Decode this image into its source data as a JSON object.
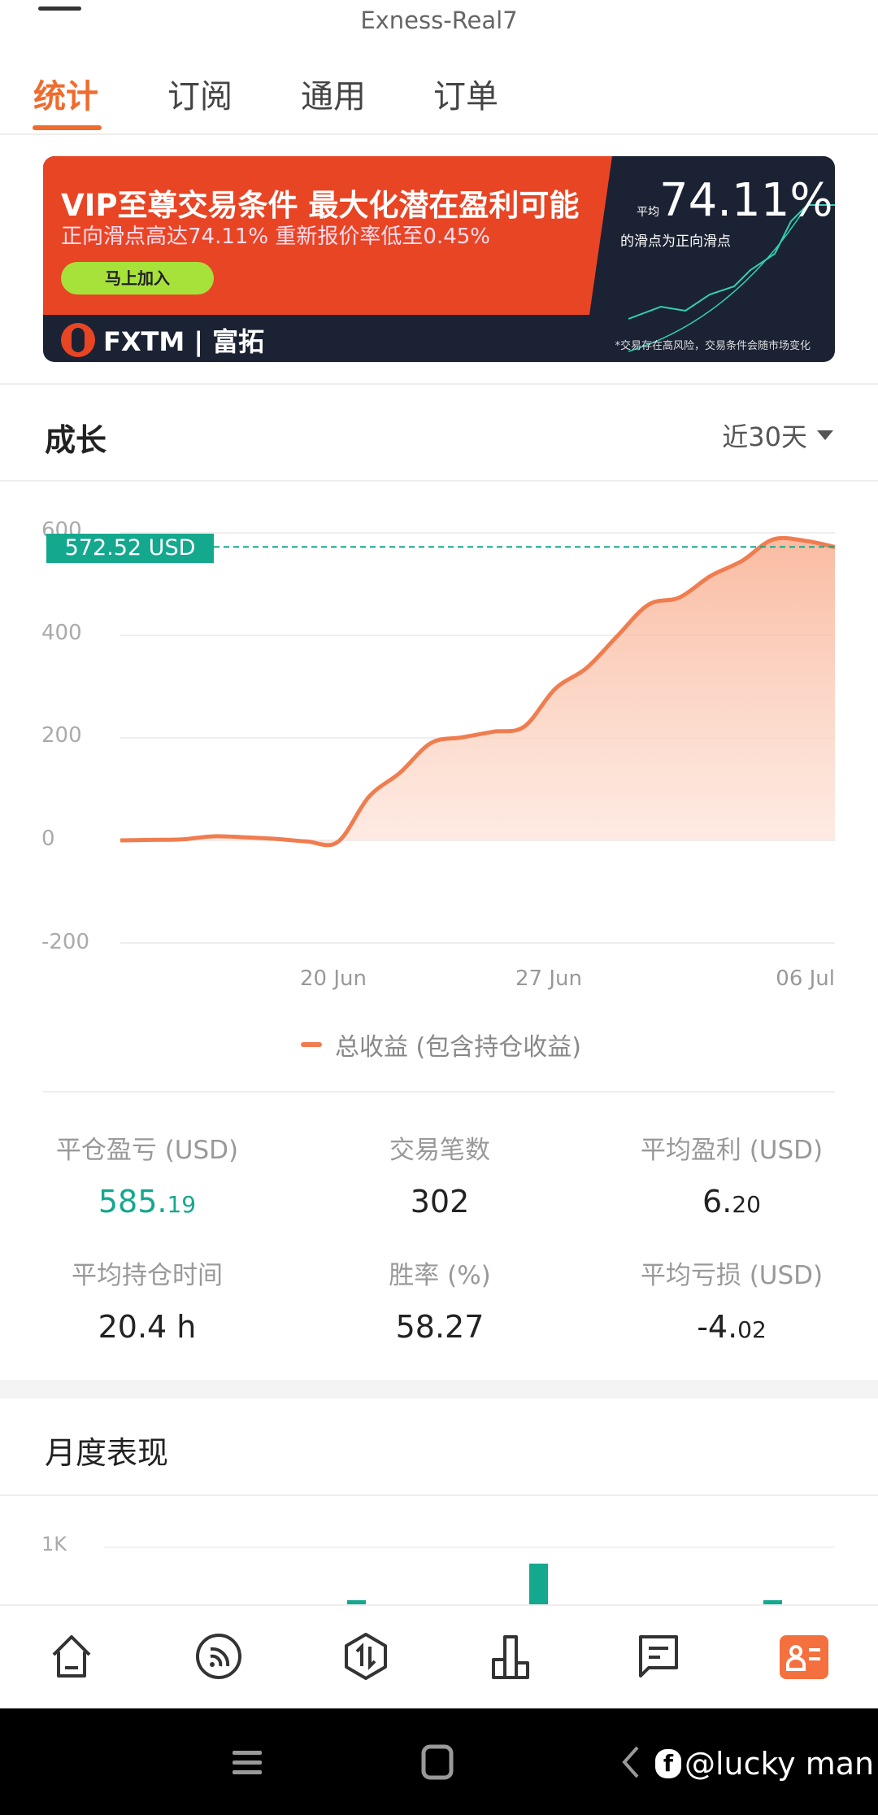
{
  "header": {
    "title": "Exness-Real7"
  },
  "tabs": [
    {
      "label": "统计",
      "active": true
    },
    {
      "label": "订阅"
    },
    {
      "label": "通用"
    },
    {
      "label": "订单"
    }
  ],
  "banner": {
    "headline": "VIP至尊交易条件 最大化潜在盈利可能",
    "subline": "正向滑点高达74.11% 重新报价率低至0.45%",
    "cta": "马上加入",
    "brand": "FXTM | 富拓",
    "stat_prefix": "平均",
    "stat": "74.11%",
    "stat_caption": "的滑点为正向滑点",
    "risk": "*交易存在高风险，交易条件会随市场变化"
  },
  "growth": {
    "title": "成长",
    "period": "近30天",
    "current_label": "572.52 USD",
    "legend": "总收益 (包含持仓收益)"
  },
  "chart_data": {
    "type": "area",
    "ylim": [
      -200,
      600
    ],
    "yticks": [
      "600",
      "400",
      "200",
      "0",
      "-200"
    ],
    "xticks": [
      "20 Jun",
      "27 Jun",
      "06 Jul"
    ],
    "grid": true,
    "legend_placement": "bottom",
    "series": [
      {
        "name": "总收益 (包含持仓收益)",
        "color": "#f07d4f",
        "x": [
          "13 Jun",
          "14 Jun",
          "15 Jun",
          "16 Jun",
          "17 Jun",
          "18 Jun",
          "19 Jun",
          "20 Jun",
          "21 Jun",
          "22 Jun",
          "23 Jun",
          "24 Jun",
          "25 Jun",
          "26 Jun",
          "27 Jun",
          "28 Jun",
          "29 Jun",
          "30 Jun",
          "01 Jul",
          "02 Jul",
          "03 Jul",
          "04 Jul",
          "05 Jul",
          "06 Jul"
        ],
        "y": [
          0,
          1,
          2,
          8,
          6,
          3,
          -2,
          -3,
          85,
          132,
          190,
          201,
          212,
          222,
          296,
          336,
          399,
          460,
          474,
          516,
          545,
          587,
          585,
          572.52
        ]
      }
    ],
    "reference_line": {
      "value": 572.52,
      "label": "572.52 USD",
      "color": "#14a88e"
    }
  },
  "stats": [
    {
      "label": "平仓盈亏 (USD)",
      "int": "585.",
      "dec": "19",
      "positive": true
    },
    {
      "label": "交易笔数",
      "int": "302",
      "dec": ""
    },
    {
      "label": "平均盈利 (USD)",
      "int": "6.",
      "dec": "20"
    },
    {
      "label": "平均持仓时间",
      "int": "20.4 h",
      "dec": ""
    },
    {
      "label": "胜率 (%)",
      "int": "58.27",
      "dec": ""
    },
    {
      "label": "平均亏损 (USD)",
      "int": "-4.",
      "dec": "02"
    }
  ],
  "monthly": {
    "title": "月度表现",
    "chart": {
      "type": "bar",
      "yticks": [
        "1K"
      ],
      "color": "#14a88e",
      "values": [
        590,
        870,
        590
      ]
    }
  },
  "bottom_nav": [
    {
      "icon": "home-icon"
    },
    {
      "icon": "signal-feed-icon"
    },
    {
      "icon": "trade-icon"
    },
    {
      "icon": "rank-chart-icon"
    },
    {
      "icon": "message-icon"
    },
    {
      "icon": "profile-card-icon",
      "active": true
    }
  ],
  "watermark": "@lucky man"
}
